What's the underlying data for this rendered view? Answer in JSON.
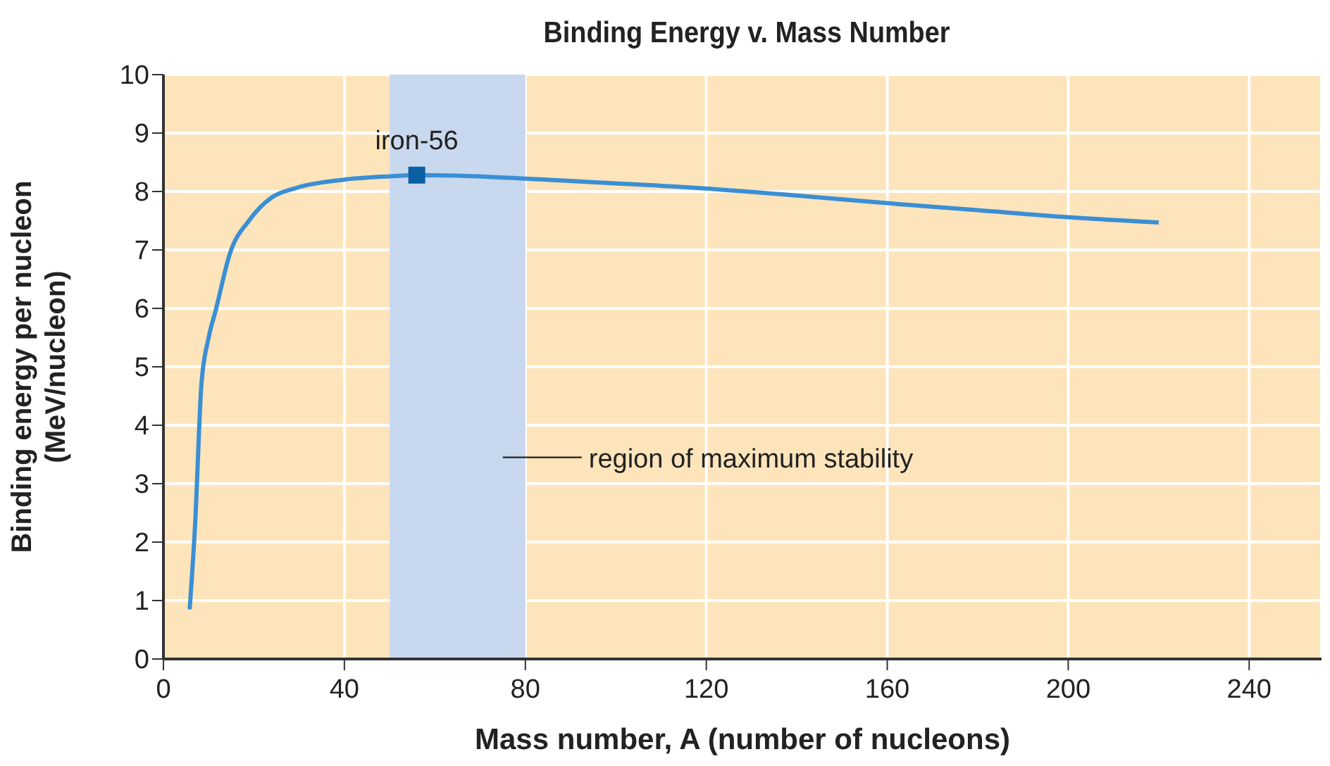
{
  "chart_data": {
    "type": "line",
    "title": "Binding Energy v. Mass Number",
    "xlabel": "Mass number, A (number of nucleons)",
    "ylabel": "Binding energy per nucleon\n(MeV/nucleon)",
    "series": [
      {
        "color": "#3a8fd4",
        "x": [
          5.8,
          7,
          8.4,
          10,
          11.6,
          14.7,
          18.9,
          24,
          29.3,
          39.6,
          50,
          56,
          65,
          80,
          100,
          120,
          140,
          160,
          180,
          200,
          220
        ],
        "values": [
          0.85,
          2.3,
          4.7,
          5.5,
          5.98,
          6.94,
          7.5,
          7.9,
          8.06,
          8.2,
          8.26,
          8.28,
          8.27,
          8.22,
          8.14,
          8.05,
          7.93,
          7.8,
          7.68,
          7.56,
          7.47
        ]
      },
      {
        "type": "scatter",
        "name": "iron-56",
        "color": "#0b5fa3",
        "marker": "square",
        "x": [
          56
        ],
        "values": [
          8.28
        ]
      }
    ],
    "xlim": [
      0,
      256
    ],
    "xticks": [
      0,
      40,
      80,
      120,
      160,
      200,
      240
    ],
    "ylim": [
      0,
      10
    ],
    "yticks": [
      0,
      1,
      2,
      3,
      4,
      5,
      6,
      7,
      8,
      9,
      10
    ],
    "grid": true,
    "marker": "none",
    "line_style": "solid",
    "bands": [
      {
        "axis": "x",
        "from": 50,
        "to": 80,
        "label": "region of maximum stability",
        "color": "#c8d8ef"
      }
    ]
  }
}
